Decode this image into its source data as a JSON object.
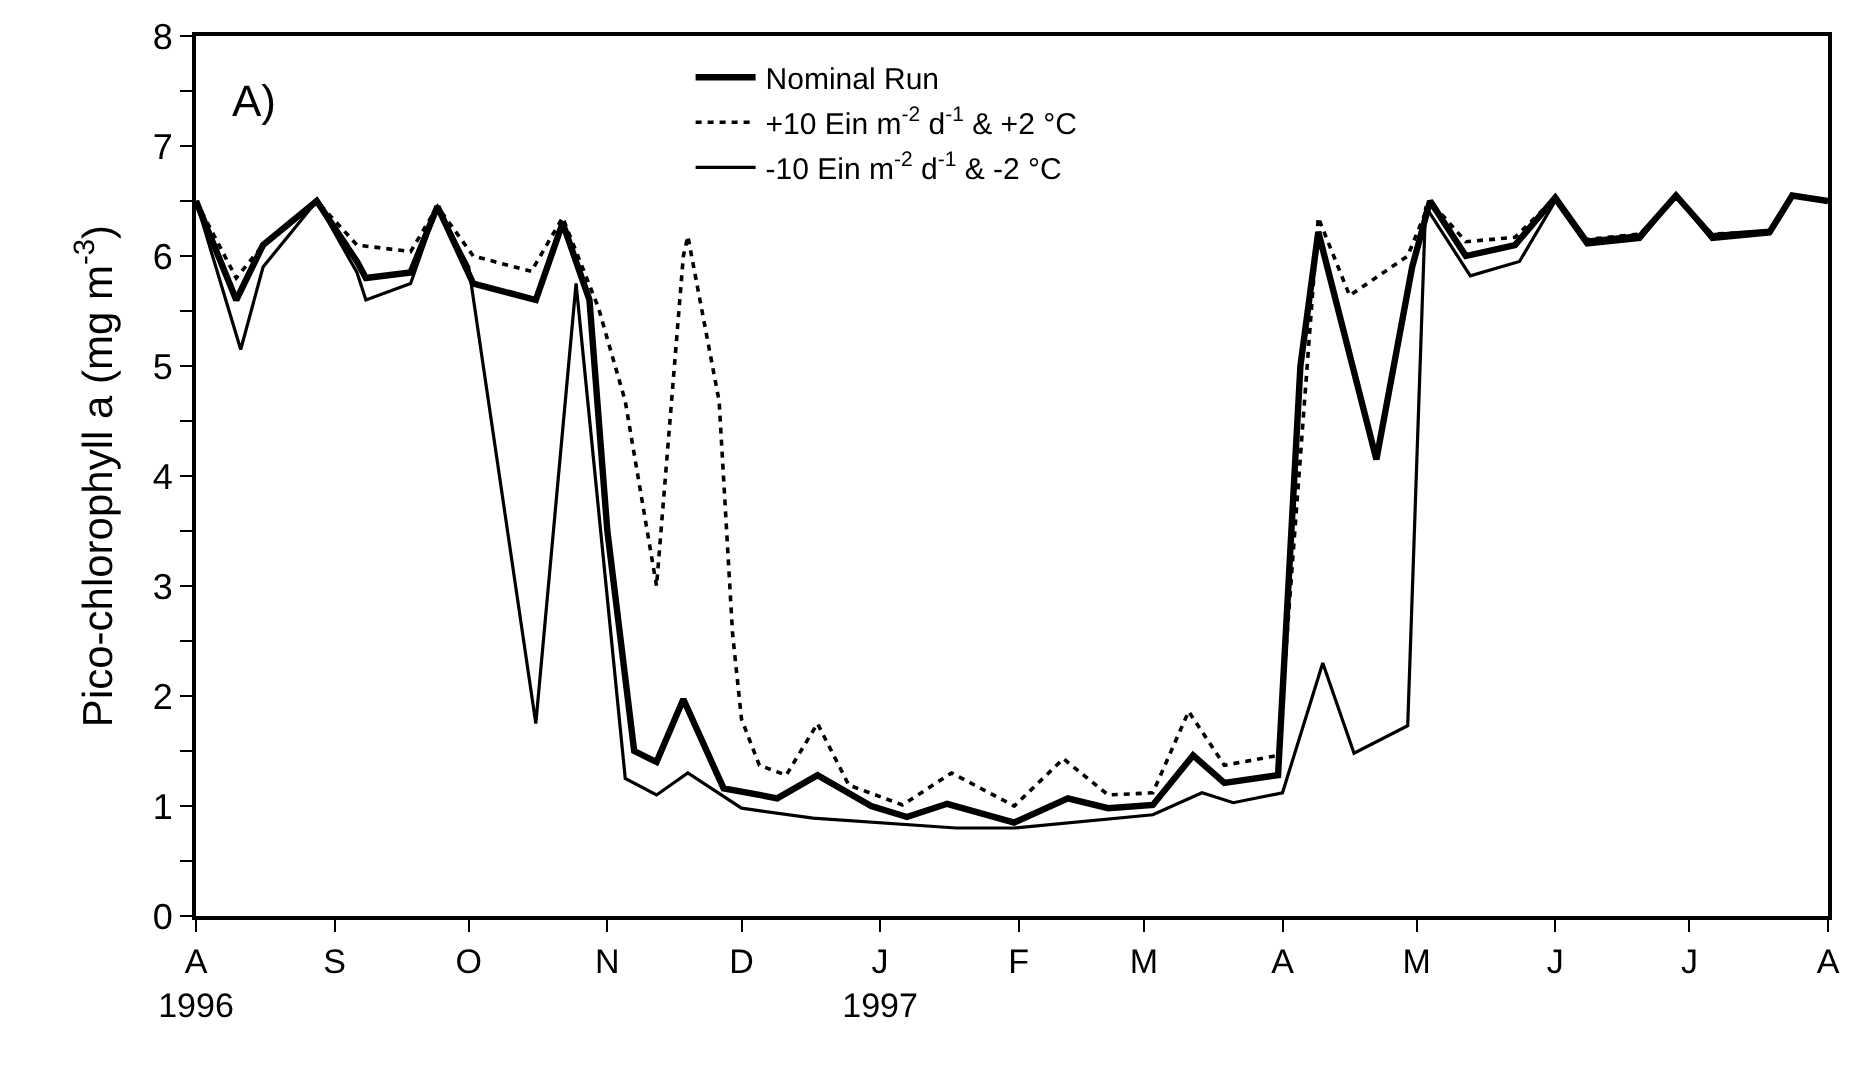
{
  "chart_data": {
    "type": "line",
    "ylabel": "Pico-chlorophyll a (mg m$^{-3}$)",
    "annotations": [
      "A)"
    ],
    "legend": "top",
    "grid": false,
    "marker": "none",
    "xlim": [
      "1996-08-01",
      "1997-08-01"
    ],
    "xticks": [
      {
        "value": "1996-08-01",
        "label": "A\n1996"
      },
      {
        "value": "1996-09-01",
        "label": "S"
      },
      {
        "value": "1996-10-01",
        "label": "O"
      },
      {
        "value": "1996-11-01",
        "label": "N"
      },
      {
        "value": "1996-12-01",
        "label": "D"
      },
      {
        "value": "1997-01-01",
        "label": "J\n1997"
      },
      {
        "value": "1997-02-01",
        "label": "F"
      },
      {
        "value": "1997-03-01",
        "label": "M"
      },
      {
        "value": "1997-04-01",
        "label": "A"
      },
      {
        "value": "1997-05-01",
        "label": "M"
      },
      {
        "value": "1997-06-01",
        "label": "J"
      },
      {
        "value": "1997-07-01",
        "label": "J"
      },
      {
        "value": "1997-08-01",
        "label": "A"
      }
    ],
    "ylim": [
      0,
      8
    ],
    "yticks": [
      0,
      {
        "value": 0.5,
        "label": null
      },
      1,
      {
        "value": 1.5,
        "label": null
      },
      2,
      {
        "value": 2.5,
        "label": null
      },
      3,
      {
        "value": 3.5,
        "label": null
      },
      4,
      {
        "value": 4.5,
        "label": null
      },
      5,
      {
        "value": 5.5,
        "label": null
      },
      6,
      {
        "value": 6.5,
        "label": null
      },
      7,
      {
        "value": 7.5,
        "label": null
      },
      8
    ],
    "series": [
      {
        "name": "Nominal Run",
        "color": "#000000",
        "line_style": "solid",
        "x": [
          "1996-08-01",
          "1996-08-10",
          "1996-08-16",
          "1996-08-28",
          "1996-09-06",
          "1996-09-08",
          "1996-09-18",
          "1996-09-24",
          "1996-10-02",
          "1996-10-16",
          "1996-10-22",
          "1996-10-28",
          "1996-11-01",
          "1996-11-07",
          "1996-11-12",
          "1996-11-18",
          "1996-11-27",
          "1996-12-09",
          "1996-12-18",
          "1996-12-30",
          "1997-01-07",
          "1997-01-16",
          "1997-01-31",
          "1997-02-12",
          "1997-02-21",
          "1997-03-03",
          "1997-03-12",
          "1997-03-19",
          "1997-03-31",
          "1997-04-05",
          "1997-04-09",
          "1997-04-22",
          "1997-04-30",
          "1997-05-04",
          "1997-05-12",
          "1997-05-23",
          "1997-06-01",
          "1997-06-08",
          "1997-06-20",
          "1997-06-28",
          "1997-07-06",
          "1997-07-19",
          "1997-07-24",
          "1997-08-01"
        ],
        "values": [
          6.5,
          5.6,
          6.1,
          6.5,
          5.95,
          5.8,
          5.85,
          6.45,
          5.75,
          5.6,
          6.3,
          5.6,
          3.5,
          1.5,
          1.4,
          1.97,
          1.16,
          1.07,
          1.28,
          1.0,
          0.9,
          1.02,
          0.85,
          1.07,
          0.98,
          1.01,
          1.46,
          1.21,
          1.28,
          5.0,
          6.22,
          4.15,
          5.9,
          6.5,
          6.0,
          6.1,
          6.53,
          6.13,
          6.18,
          6.55,
          6.18,
          6.22,
          6.55,
          6.5
        ]
      },
      {
        "name": "+10 Ein m$^{-2}$ d$^{-1}$ & +2 °C",
        "color": "#000000",
        "line_style": "dotted",
        "x": [
          "1996-08-01",
          "1996-08-10",
          "1996-08-16",
          "1996-08-28",
          "1996-09-06",
          "1996-09-18",
          "1996-09-24",
          "1996-10-02",
          "1996-10-15",
          "1996-10-22",
          "1996-10-30",
          "1996-11-05",
          "1996-11-12",
          "1996-11-18",
          "1996-11-19",
          "1996-11-26",
          "1996-11-29",
          "1996-12-01",
          "1996-12-05",
          "1996-12-11",
          "1996-12-18",
          "1996-12-25",
          "1997-01-06",
          "1997-01-17",
          "1997-01-31",
          "1997-02-11",
          "1997-02-21",
          "1997-03-03",
          "1997-03-11",
          "1997-03-19",
          "1997-03-31",
          "1997-04-09",
          "1997-04-16",
          "1997-04-29",
          "1997-05-04",
          "1997-05-12",
          "1997-05-23",
          "1997-06-01",
          "1997-06-08",
          "1997-06-20",
          "1997-06-28",
          "1997-07-06",
          "1997-07-19",
          "1997-07-24",
          "1997-08-01"
        ],
        "values": [
          6.5,
          5.8,
          6.1,
          6.5,
          6.1,
          6.04,
          6.45,
          6.0,
          5.86,
          6.35,
          5.53,
          4.68,
          3.0,
          6.0,
          6.18,
          4.68,
          2.57,
          1.79,
          1.37,
          1.28,
          1.75,
          1.19,
          1.01,
          1.3,
          1.0,
          1.43,
          1.1,
          1.12,
          1.86,
          1.37,
          1.46,
          6.35,
          5.64,
          6.0,
          6.5,
          6.13,
          6.17,
          6.53,
          6.15,
          6.2,
          6.55,
          6.2,
          6.22,
          6.55,
          6.5
        ]
      },
      {
        "name": "-10 Ein m$^{-2}$ d$^{-1}$ & -2 °C",
        "color": "#000000",
        "line_style": "solid",
        "x": [
          "1996-08-01",
          "1996-08-11",
          "1996-08-16",
          "1996-08-28",
          "1996-09-06",
          "1996-09-08",
          "1996-09-18",
          "1996-09-24",
          "1996-10-01",
          "1996-10-16",
          "1996-10-25",
          "1996-11-05",
          "1996-11-12",
          "1996-11-19",
          "1996-12-01",
          "1996-12-17",
          "1997-01-18",
          "1997-01-31",
          "1997-03-03",
          "1997-03-14",
          "1997-03-21",
          "1997-04-01",
          "1997-04-10",
          "1997-04-17",
          "1997-04-29",
          "1997-05-03",
          "1997-05-13",
          "1997-05-24",
          "1997-06-01",
          "1997-06-08",
          "1997-06-20",
          "1997-06-28",
          "1997-07-06",
          "1997-07-19",
          "1997-07-24",
          "1997-08-01"
        ],
        "values": [
          6.5,
          5.15,
          5.9,
          6.5,
          5.85,
          5.6,
          5.75,
          6.45,
          5.9,
          1.75,
          5.75,
          1.25,
          1.1,
          1.3,
          0.98,
          0.89,
          0.8,
          0.8,
          0.92,
          1.12,
          1.03,
          1.12,
          2.3,
          1.48,
          1.73,
          6.45,
          5.82,
          5.95,
          6.5,
          6.1,
          6.15,
          6.55,
          6.15,
          6.2,
          6.55,
          6.5
        ]
      }
    ]
  }
}
